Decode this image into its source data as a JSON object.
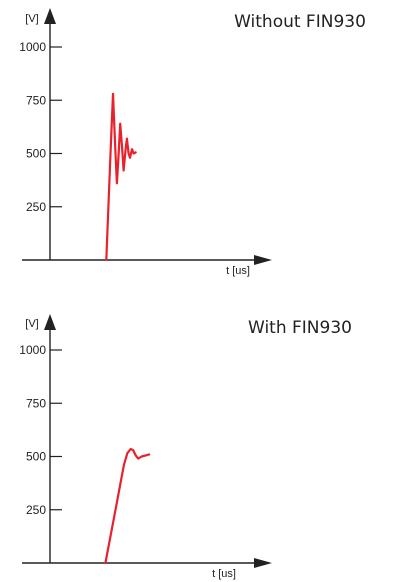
{
  "chart_data": [
    {
      "type": "line",
      "title": "Without FIN930",
      "ylabel": "[V]",
      "xlabel": "t [us]",
      "yticks": [
        250,
        500,
        750,
        1000
      ],
      "ylim": [
        0,
        1000
      ],
      "series": [
        {
          "color": "#e8212b",
          "points": [
            [
              3.35,
              0
            ],
            [
              3.6,
              500
            ],
            [
              3.75,
              780
            ],
            [
              3.9,
              500
            ],
            [
              3.98,
              360
            ],
            [
              4.1,
              520
            ],
            [
              4.18,
              640
            ],
            [
              4.3,
              520
            ],
            [
              4.38,
              420
            ],
            [
              4.5,
              520
            ],
            [
              4.58,
              570
            ],
            [
              4.68,
              500
            ],
            [
              4.76,
              480
            ],
            [
              4.88,
              520
            ],
            [
              4.98,
              500
            ],
            [
              5.1,
              505
            ]
          ]
        }
      ]
    },
    {
      "type": "line",
      "title": "With FIN930",
      "ylabel": "[V]",
      "xlabel": "t [us]",
      "yticks": [
        250,
        500,
        750,
        1000
      ],
      "ylim": [
        0,
        1000
      ],
      "series": [
        {
          "color": "#e8212b",
          "points": [
            [
              3.3,
              0
            ],
            [
              3.9,
              250
            ],
            [
              4.4,
              460
            ],
            [
              4.6,
              515
            ],
            [
              4.8,
              535
            ],
            [
              4.95,
              530
            ],
            [
              5.1,
              505
            ],
            [
              5.25,
              490
            ],
            [
              5.45,
              500
            ],
            [
              5.7,
              505
            ],
            [
              5.9,
              510
            ]
          ]
        }
      ]
    }
  ]
}
